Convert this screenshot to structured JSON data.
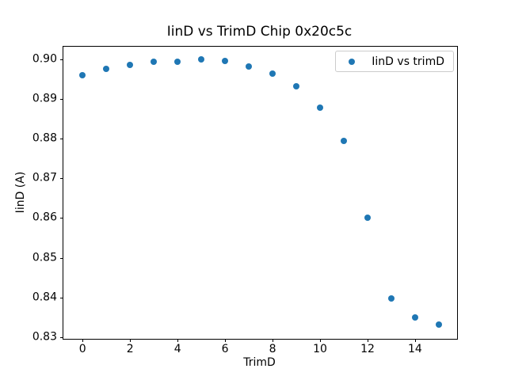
{
  "chart_data": {
    "type": "scatter",
    "title": "IinD vs TrimD Chip 0x20c5c",
    "xlabel": "TrimD",
    "ylabel": "IinD (A)",
    "x": [
      0,
      1,
      2,
      3,
      4,
      5,
      6,
      7,
      8,
      9,
      10,
      11,
      12,
      13,
      14,
      15
    ],
    "series": [
      {
        "name": "IinD vs trimD",
        "values": [
          0.896,
          0.8975,
          0.8986,
          0.8993,
          0.8993,
          0.8999,
          0.8995,
          0.8982,
          0.8963,
          0.8931,
          0.8878,
          0.8793,
          0.86,
          0.8398,
          0.835,
          0.8332
        ]
      }
    ],
    "xlim": [
      -0.81,
      15.77
    ],
    "ylim": [
      0.8296,
      0.9031
    ],
    "xticks": [
      0,
      2,
      4,
      6,
      8,
      10,
      12,
      14
    ],
    "xtick_labels": [
      "0",
      "2",
      "4",
      "6",
      "8",
      "10",
      "12",
      "14"
    ],
    "yticks": [
      0.83,
      0.84,
      0.85,
      0.86,
      0.87,
      0.88,
      0.89,
      0.9
    ],
    "ytick_labels": [
      "0.83",
      "0.84",
      "0.85",
      "0.86",
      "0.87",
      "0.88",
      "0.89",
      "0.90"
    ],
    "grid": false,
    "legend_position": "upper right",
    "marker_color": "#1f77b4",
    "spine_color": "#000000",
    "background_color": "#ffffff"
  }
}
